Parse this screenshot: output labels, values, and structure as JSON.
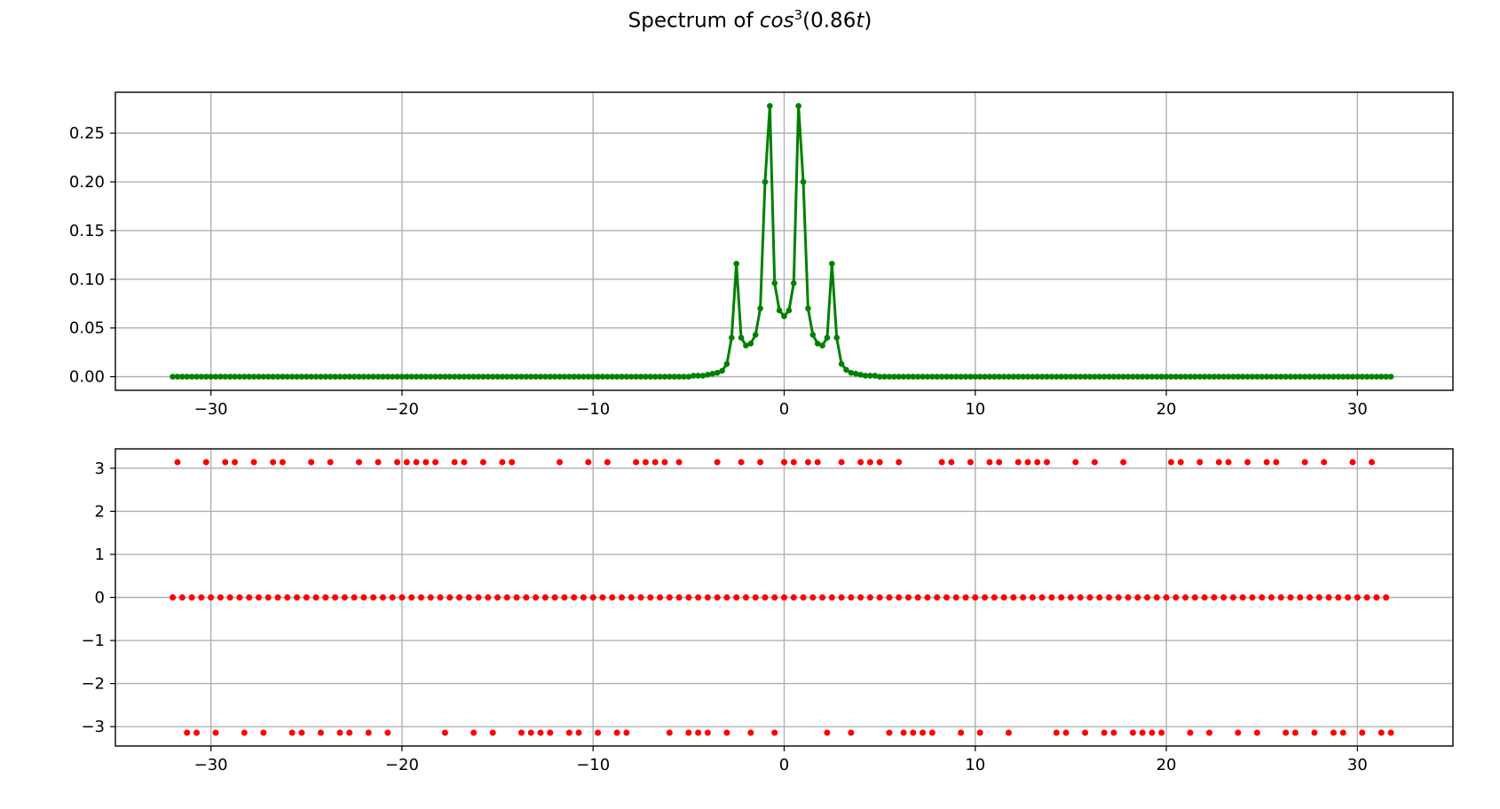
{
  "figure": {
    "title_prefix": "Spectrum of ",
    "title_func": "cos",
    "title_power": "3",
    "title_arg": "(0.86",
    "title_var": "t",
    "title_close": ")"
  },
  "chart_data": [
    {
      "type": "line",
      "name": "magnitude",
      "color": "#008000",
      "marker": "circle",
      "xlim": [
        -35,
        35
      ],
      "ylim": [
        -0.014,
        0.292
      ],
      "xticks": [
        -30,
        -20,
        -10,
        0,
        10,
        20,
        30
      ],
      "yticks": [
        0.0,
        0.05,
        0.1,
        0.15,
        0.2,
        0.25
      ],
      "ytick_labels": [
        "0.00",
        "0.05",
        "0.10",
        "0.15",
        "0.20",
        "0.25"
      ],
      "grid": true,
      "x_range": [
        -32.0,
        31.75
      ],
      "x_step": 0.25,
      "peaks": [
        {
          "x": -3.0,
          "y": 0.013
        },
        {
          "x": -2.75,
          "y": 0.04
        },
        {
          "x": -2.5,
          "y": 0.116
        },
        {
          "x": -2.25,
          "y": 0.04
        },
        {
          "x": -2.0,
          "y": 0.032
        },
        {
          "x": -1.75,
          "y": 0.034
        },
        {
          "x": -1.5,
          "y": 0.043
        },
        {
          "x": -1.25,
          "y": 0.07
        },
        {
          "x": -1.0,
          "y": 0.2
        },
        {
          "x": -0.75,
          "y": 0.278
        },
        {
          "x": -0.5,
          "y": 0.096
        },
        {
          "x": -0.25,
          "y": 0.068
        },
        {
          "x": 0.0,
          "y": 0.062
        },
        {
          "x": 0.25,
          "y": 0.068
        },
        {
          "x": 0.5,
          "y": 0.096
        },
        {
          "x": 0.75,
          "y": 0.278
        },
        {
          "x": 1.0,
          "y": 0.2
        },
        {
          "x": 1.25,
          "y": 0.07
        },
        {
          "x": 1.5,
          "y": 0.043
        },
        {
          "x": 1.75,
          "y": 0.034
        },
        {
          "x": 2.0,
          "y": 0.032
        },
        {
          "x": 2.25,
          "y": 0.04
        },
        {
          "x": 2.5,
          "y": 0.116
        },
        {
          "x": 2.75,
          "y": 0.04
        },
        {
          "x": 3.0,
          "y": 0.013
        }
      ],
      "tail": [
        {
          "x": -4.75,
          "y": 0.001
        },
        {
          "x": -4.5,
          "y": 0.001
        },
        {
          "x": -4.25,
          "y": 0.001
        },
        {
          "x": -4.0,
          "y": 0.002
        },
        {
          "x": -3.75,
          "y": 0.003
        },
        {
          "x": -3.5,
          "y": 0.004
        },
        {
          "x": -3.25,
          "y": 0.006
        },
        {
          "x": 3.25,
          "y": 0.007
        },
        {
          "x": 3.5,
          "y": 0.004
        },
        {
          "x": 3.75,
          "y": 0.003
        },
        {
          "x": 4.0,
          "y": 0.002
        },
        {
          "x": 4.25,
          "y": 0.001
        },
        {
          "x": 4.5,
          "y": 0.001
        },
        {
          "x": 4.75,
          "y": 0.001
        }
      ]
    },
    {
      "type": "scatter",
      "name": "phase",
      "color": "#ff0000",
      "xlim": [
        -35,
        35
      ],
      "ylim": [
        -3.45,
        3.45
      ],
      "xticks": [
        -30,
        -20,
        -10,
        0,
        10,
        20,
        30
      ],
      "yticks": [
        -3,
        -2,
        -1,
        0,
        1,
        2,
        3
      ],
      "ytick_labels": [
        "−3",
        "−2",
        "−1",
        "0",
        "1",
        "2",
        "3"
      ],
      "grid": true,
      "zero_row": {
        "x_start": -32.0,
        "x_end": 31.5,
        "step": 0.5,
        "y": 0
      },
      "top_row": {
        "y": 3.14159,
        "x": [
          -31.75,
          -30.25,
          -29.25,
          -28.75,
          -27.75,
          -26.75,
          -26.25,
          -24.75,
          -23.75,
          -22.25,
          -21.25,
          -20.25,
          -19.75,
          -19.25,
          -18.75,
          -18.25,
          -17.25,
          -16.75,
          -15.75,
          -14.75,
          -14.25,
          -11.75,
          -10.25,
          -9.25,
          -7.75,
          -7.25,
          -6.75,
          -6.25,
          -5.5,
          -3.5,
          -2.25,
          -1.25,
          0.0,
          0.5,
          1.25,
          1.75,
          3.0,
          4.0,
          4.5,
          5.0,
          6.0,
          8.25,
          8.75,
          9.75,
          10.75,
          11.25,
          12.25,
          12.75,
          13.25,
          13.75,
          15.25,
          16.25,
          17.75,
          20.25,
          20.75,
          21.75,
          22.75,
          23.25,
          24.25,
          25.25,
          25.75,
          27.25,
          28.25,
          29.75,
          30.75
        ]
      },
      "bottom_row": {
        "y": -3.14159,
        "x": [
          -31.25,
          -30.75,
          -29.75,
          -28.25,
          -27.25,
          -25.75,
          -25.25,
          -24.25,
          -23.25,
          -22.75,
          -21.75,
          -20.75,
          -17.75,
          -16.25,
          -15.25,
          -13.75,
          -13.25,
          -12.75,
          -12.25,
          -11.25,
          -10.75,
          -9.75,
          -8.75,
          -8.25,
          -6.0,
          -5.0,
          -4.5,
          -4.0,
          -3.0,
          -1.75,
          -0.5,
          2.25,
          3.5,
          5.5,
          6.25,
          6.75,
          7.25,
          7.75,
          9.25,
          10.25,
          11.75,
          14.25,
          14.75,
          15.75,
          16.75,
          17.25,
          18.25,
          18.75,
          19.25,
          19.75,
          21.25,
          22.25,
          23.75,
          24.75,
          26.25,
          26.75,
          27.75,
          28.75,
          29.25,
          30.25,
          31.25,
          31.75
        ]
      }
    }
  ]
}
